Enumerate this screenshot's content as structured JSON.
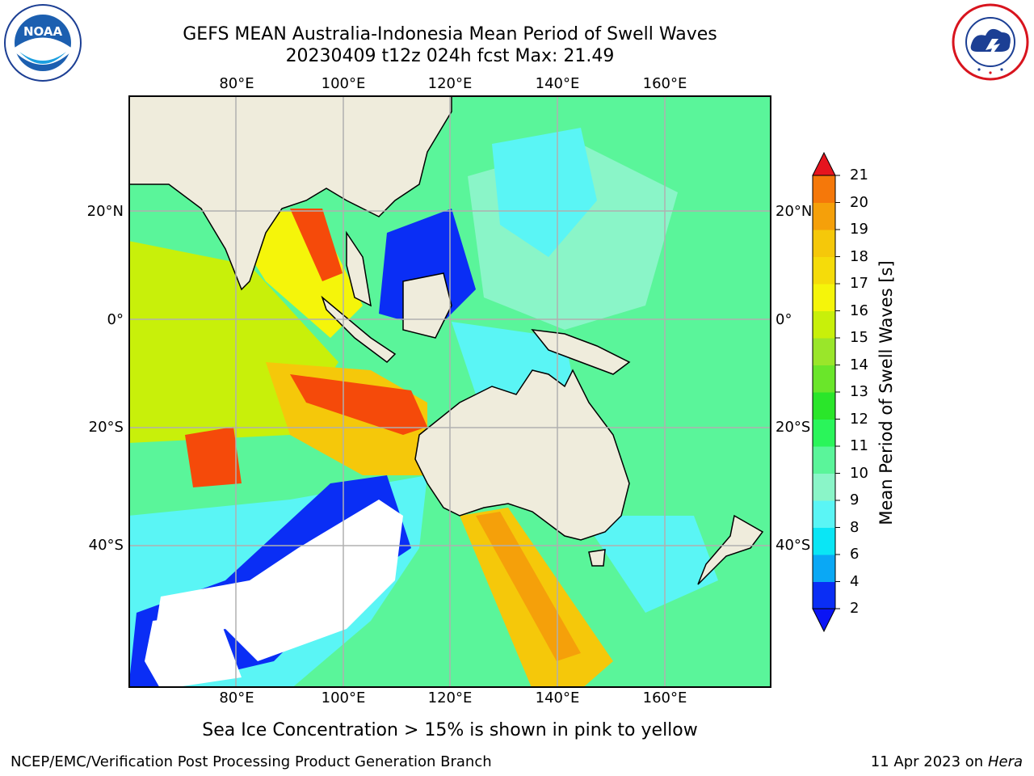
{
  "header": {
    "title_line1": "GEFS MEAN Australia-Indonesia Mean Period of Swell Waves",
    "title_line2": "20230409 t12z 024h fcst   Max: 21.49"
  },
  "logos": {
    "left": "NOAA",
    "left_ring_text": "NATIONAL OCEANIC AND ATMOSPHERIC ADMINISTRATION · U.S. DEPARTMENT OF COMMERCE",
    "right_ring_text": "NATIONAL WEATHER SERVICE"
  },
  "axes": {
    "lon_labels": [
      "80°E",
      "100°E",
      "120°E",
      "140°E",
      "160°E"
    ],
    "lat_labels": [
      "20°N",
      "0°",
      "20°S",
      "40°S"
    ]
  },
  "colorbar": {
    "label": "Mean Period of Swell Waves [s]",
    "ticks": [
      "2",
      "4",
      "6",
      "8",
      "9",
      "10",
      "11",
      "12",
      "13",
      "14",
      "15",
      "16",
      "17",
      "18",
      "19",
      "20",
      "21"
    ],
    "colors": [
      "#0a2ef5",
      "#0aa8f5",
      "#0ae6f5",
      "#5af5f5",
      "#8af5c8",
      "#5af59a",
      "#2af55a",
      "#2ae62a",
      "#6ae62a",
      "#9ae62a",
      "#c8f00a",
      "#f5f50a",
      "#f5dc0a",
      "#f5c80a",
      "#f5a00a",
      "#f5780a",
      "#f54a0a",
      "#f52a0a"
    ],
    "under_color": "#0a14f5",
    "over_color": "#e6141e"
  },
  "map": {
    "land_color": "#efecdc",
    "ice_note": "Sea Ice Concentration > 15% is shown in pink to yellow"
  },
  "footer": {
    "credit": "NCEP/EMC/Verification Post Processing Product Generation Branch",
    "date_text": "11 Apr 2023 on ",
    "date_host": "Hera"
  }
}
